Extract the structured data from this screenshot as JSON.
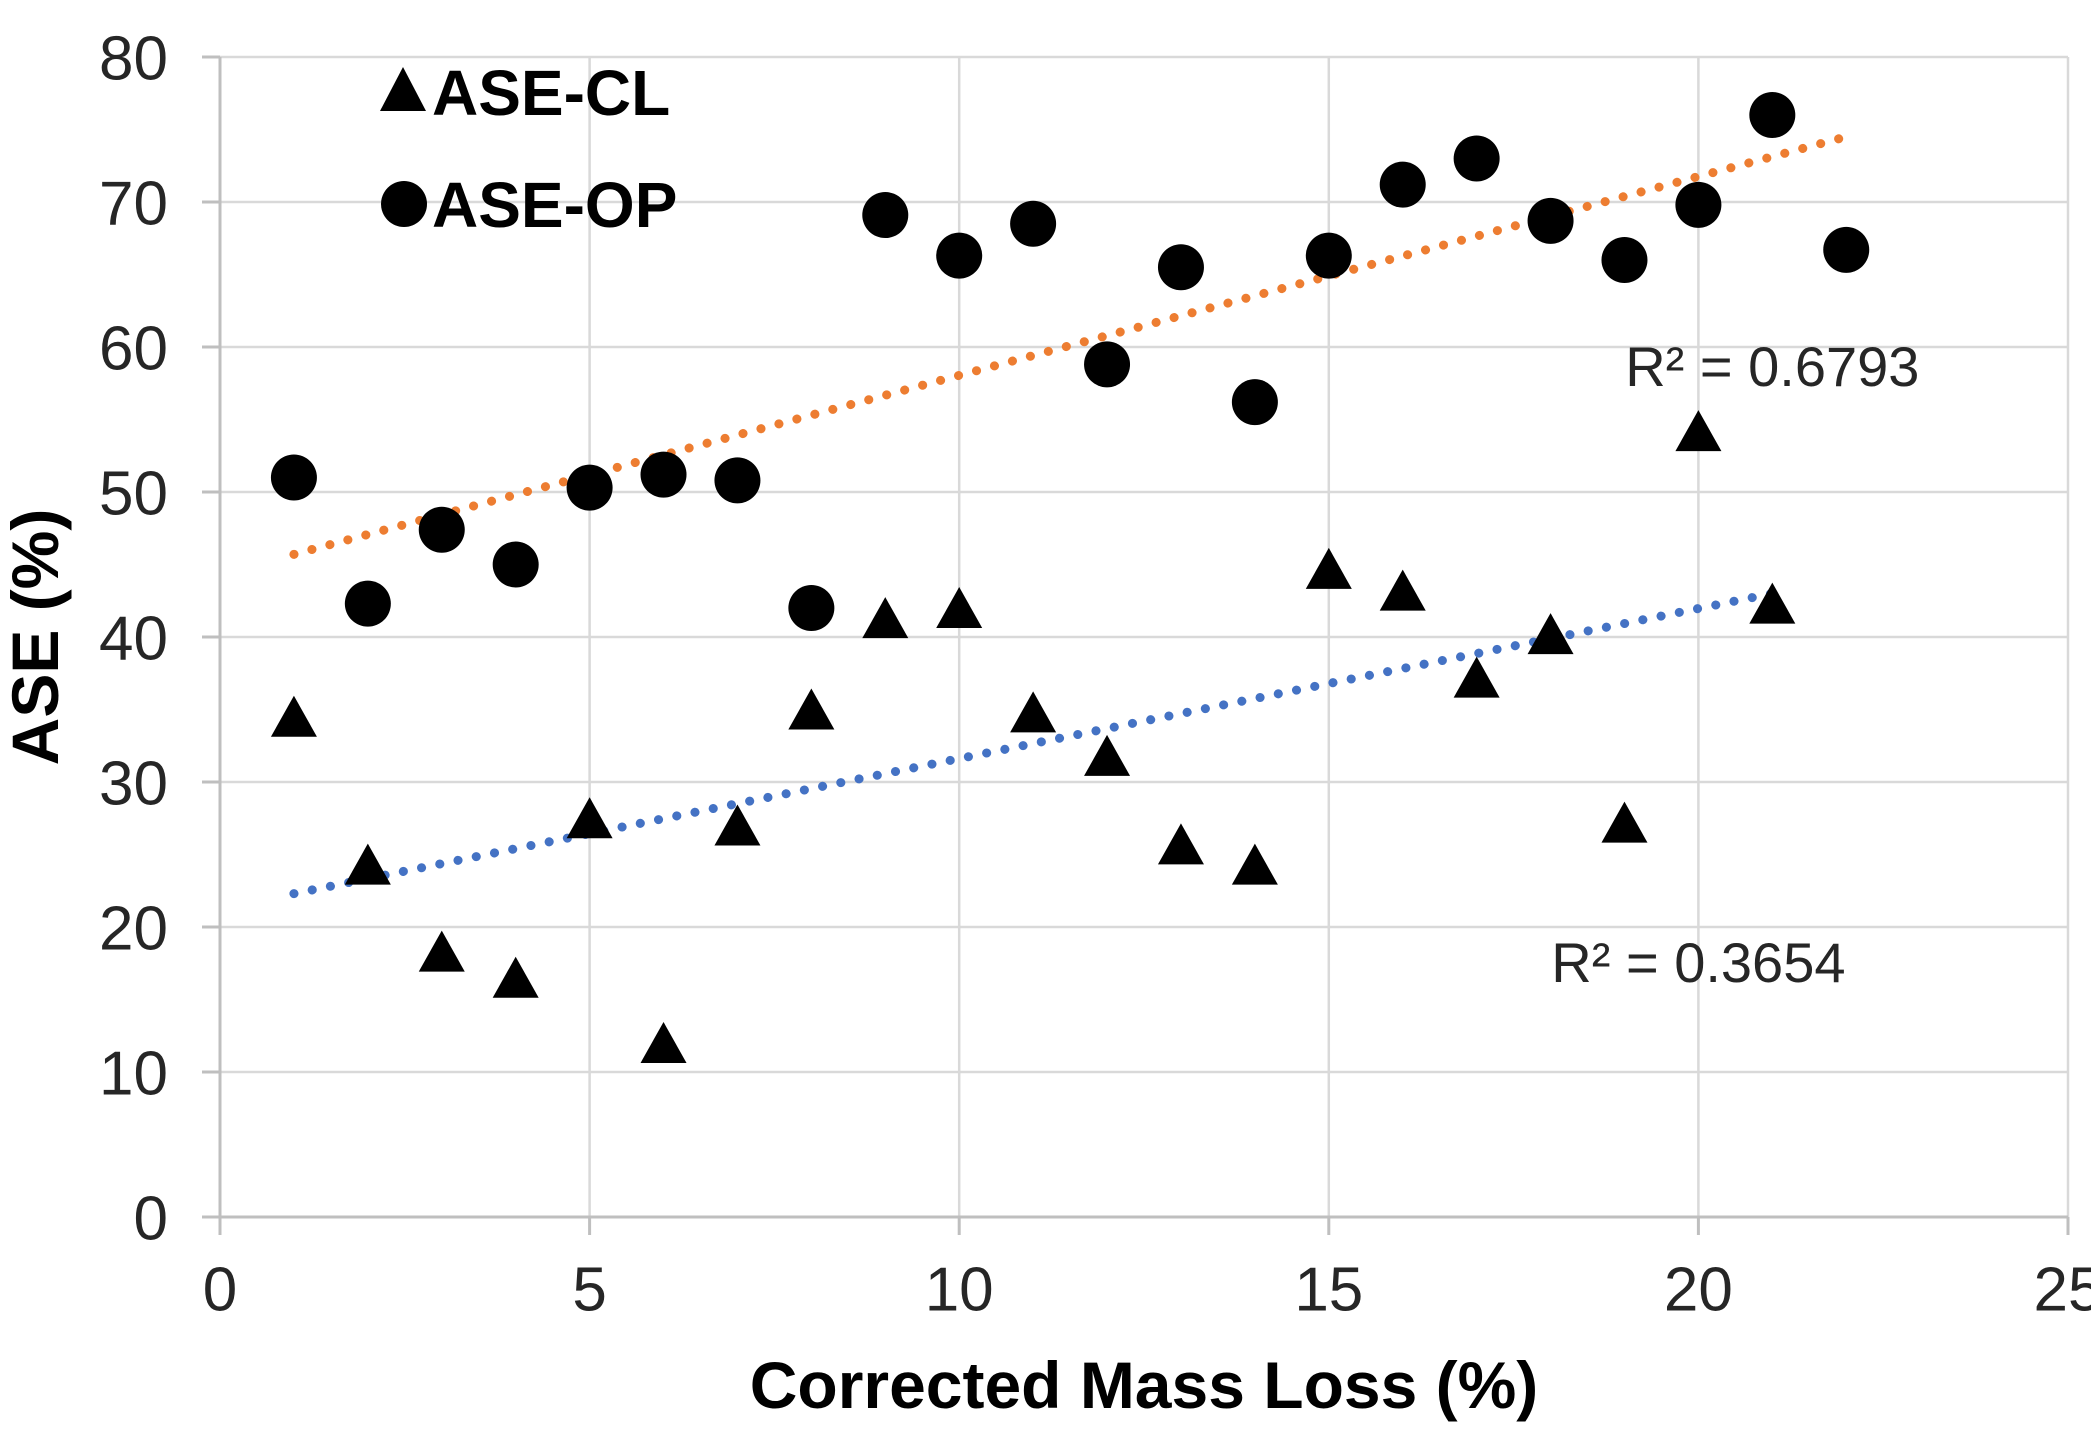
{
  "chart_data": {
    "type": "scatter",
    "title": "",
    "xlabel": "Corrected Mass Loss (%)",
    "ylabel": "ASE (%)",
    "xlim": [
      0,
      25
    ],
    "ylim": [
      0,
      80
    ],
    "x_ticks": [
      0,
      5,
      10,
      15,
      20,
      25
    ],
    "y_ticks": [
      0,
      10,
      20,
      30,
      40,
      50,
      60,
      70,
      80
    ],
    "grid": true,
    "legend_position": "inside-top-left",
    "marker_color": "#000000",
    "series": [
      {
        "name": "ASE-CL",
        "marker": "triangle",
        "color": "#000000",
        "points": [
          [
            1,
            34.5
          ],
          [
            2,
            24.3
          ],
          [
            3,
            18.3
          ],
          [
            4,
            16.5
          ],
          [
            5,
            27.5
          ],
          [
            6,
            12.0
          ],
          [
            7,
            27.0
          ],
          [
            8,
            35.0
          ],
          [
            9,
            41.3
          ],
          [
            10,
            42.0
          ],
          [
            11,
            34.8
          ],
          [
            12,
            31.8
          ],
          [
            13,
            25.7
          ],
          [
            14,
            24.3
          ],
          [
            15,
            44.7
          ],
          [
            16,
            43.2
          ],
          [
            17,
            37.2
          ],
          [
            18,
            40.2
          ],
          [
            19,
            27.2
          ],
          [
            20,
            54.2
          ],
          [
            21,
            42.3
          ]
        ],
        "trendline": {
          "style": "dotted",
          "color": "#4472c4",
          "x1": 1,
          "y1": 22.3,
          "x2": 21,
          "y2": 43.0,
          "r2_label": "R² = 0.3654",
          "r2_label_pos": [
            20.0,
            17.6
          ]
        }
      },
      {
        "name": "ASE-OP",
        "marker": "circle",
        "color": "#000000",
        "points": [
          [
            1,
            51.0
          ],
          [
            2,
            42.3
          ],
          [
            3,
            47.4
          ],
          [
            4,
            45.0
          ],
          [
            5,
            50.3
          ],
          [
            6,
            51.2
          ],
          [
            7,
            50.8
          ],
          [
            8,
            42.0
          ],
          [
            9,
            69.1
          ],
          [
            10,
            66.3
          ],
          [
            11,
            68.5
          ],
          [
            12,
            58.8
          ],
          [
            13,
            65.5
          ],
          [
            14,
            56.2
          ],
          [
            15,
            66.3
          ],
          [
            16,
            71.2
          ],
          [
            17,
            73.0
          ],
          [
            18,
            68.7
          ],
          [
            19,
            66.0
          ],
          [
            20,
            69.8
          ],
          [
            21,
            76.0
          ],
          [
            22,
            66.7
          ]
        ],
        "trendline": {
          "style": "dotted",
          "color": "#ed7d31",
          "x1": 1,
          "y1": 45.7,
          "x2": 22,
          "y2": 74.5,
          "r2_label": "R² = 0.6793",
          "r2_label_pos": [
            21.0,
            58.7
          ]
        }
      }
    ]
  }
}
